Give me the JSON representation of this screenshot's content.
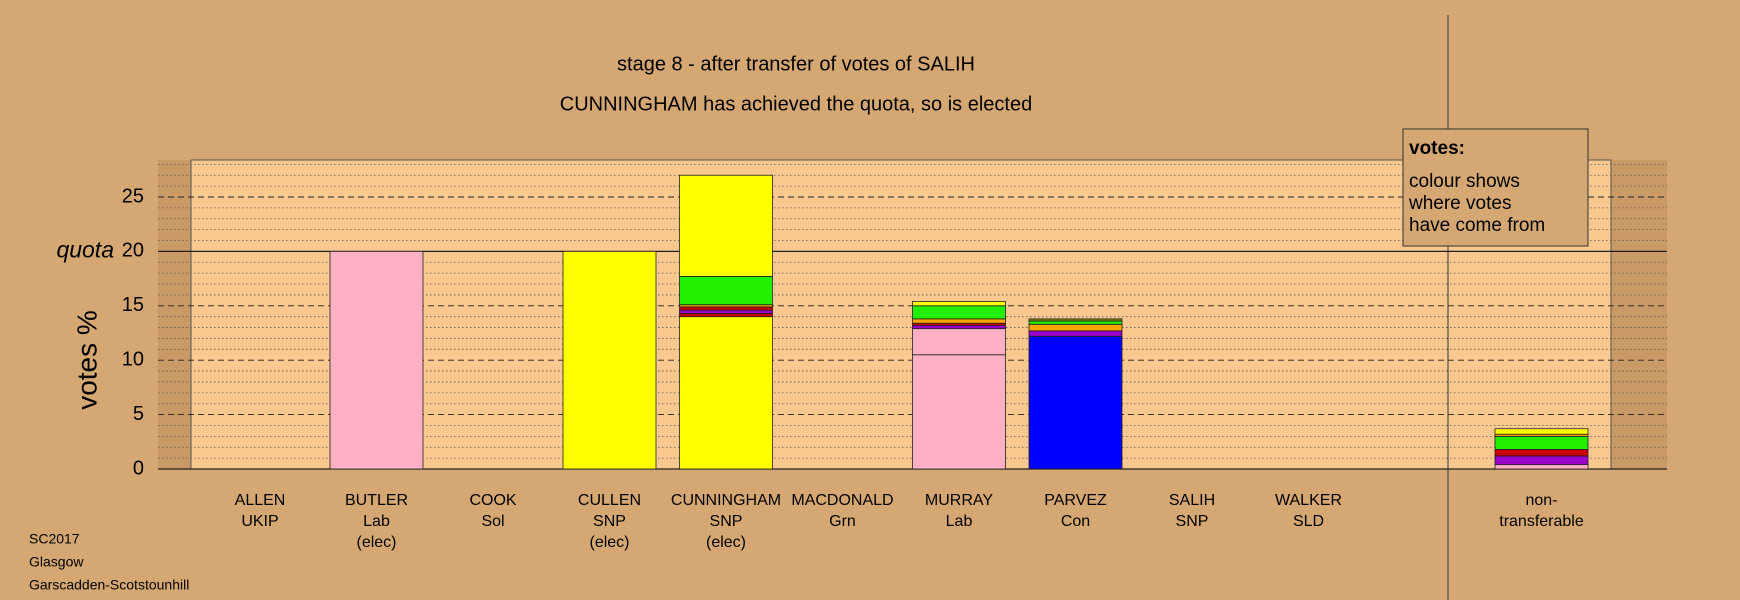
{
  "chart_data": {
    "type": "stacked-bar",
    "title": "stage 8 - after transfer of votes of SALIH",
    "subtitle": "CUNNINGHAM has achieved the quota, so is elected",
    "y_label": "votes %",
    "ylim": [
      0,
      28.4
    ],
    "yticks": [
      0,
      5,
      10,
      15,
      20,
      25
    ],
    "minor_yticks": [
      1,
      2,
      3,
      4,
      6,
      7,
      8,
      9,
      11,
      12,
      13,
      14,
      16,
      17,
      18,
      19,
      21,
      22,
      23,
      24,
      26,
      27,
      28
    ],
    "quota": {
      "value": 20,
      "label": "quota"
    },
    "categories": [
      [
        "ALLEN",
        "UKIP"
      ],
      [
        "BUTLER",
        "Lab",
        "(elec)"
      ],
      [
        "COOK",
        "Sol"
      ],
      [
        "CULLEN",
        "SNP",
        "(elec)"
      ],
      [
        "CUNNINGHAM",
        "SNP",
        "(elec)"
      ],
      [
        "MACDONALD",
        "Grn"
      ],
      [
        "MURRAY",
        "Lab"
      ],
      [
        "PARVEZ",
        "Con"
      ],
      [
        "SALIH",
        "SNP"
      ],
      [
        "WALKER",
        "SLD"
      ],
      null,
      [
        "non-",
        "transferable"
      ]
    ],
    "segments": [
      [],
      [
        {
          "color": "#ffb0c4",
          "value": 20
        }
      ],
      [],
      [
        {
          "color": "#ffff00",
          "value": 20
        }
      ],
      [
        {
          "color": "#ffff00",
          "value": 14.0
        },
        {
          "color": "#cc0000",
          "value": 0.3
        },
        {
          "color": "#9900cc",
          "value": 0.3
        },
        {
          "color": "#cc0000",
          "value": 0.3
        },
        {
          "color": "#ffa500",
          "value": 0.2
        },
        {
          "color": "#22ee00",
          "value": 2.6
        },
        {
          "color": "#ffff00",
          "value": 9.3
        }
      ],
      [],
      [
        {
          "color": "#ffb0c4",
          "value": 10.5
        },
        {
          "color": "#ffb0c4",
          "value": 2.4
        },
        {
          "color": "#9900cc",
          "value": 0.3
        },
        {
          "color": "#cc0000",
          "value": 0.2
        },
        {
          "color": "#ffa500",
          "value": 0.4
        },
        {
          "color": "#22ee00",
          "value": 1.2
        },
        {
          "color": "#ffff00",
          "value": 0.4
        }
      ],
      [
        {
          "color": "#0000ff",
          "value": 12.2
        },
        {
          "color": "#9900cc",
          "value": 0.5
        },
        {
          "color": "#ffa500",
          "value": 0.6
        },
        {
          "color": "#22ee00",
          "value": 0.3
        },
        {
          "color": "#808000",
          "value": 0.2
        }
      ],
      [],
      [],
      [],
      [
        {
          "color": "#ffb0c4",
          "value": 0.4
        },
        {
          "color": "#9900cc",
          "value": 0.8
        },
        {
          "color": "#cc0000",
          "value": 0.6
        },
        {
          "color": "#22ee00",
          "value": 1.2
        },
        {
          "color": "#ffa500",
          "value": 0.2
        },
        {
          "color": "#ffff00",
          "value": 0.5
        }
      ]
    ],
    "legend": {
      "title": "votes:",
      "lines": [
        "colour shows",
        "where votes",
        "have come from"
      ]
    },
    "footer": [
      "SC2017",
      "Glasgow",
      "Garscadden-Scotstounhill"
    ]
  }
}
